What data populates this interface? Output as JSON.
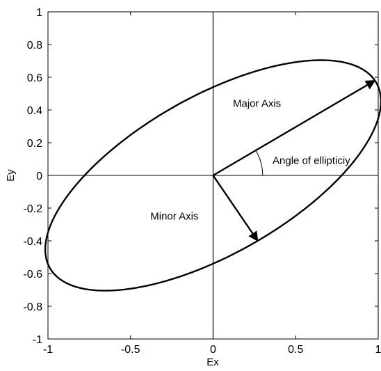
{
  "chart_data": {
    "type": "line",
    "title": "",
    "xlabel": "Ex",
    "ylabel": "Ey",
    "xlim": [
      -1,
      1
    ],
    "ylim": [
      -1,
      1
    ],
    "grid": false,
    "x_ticks": [
      -1,
      -0.5,
      0,
      0.5,
      1
    ],
    "x_tick_labels": [
      "-1",
      "-0.5",
      "0",
      "0.5",
      "1"
    ],
    "y_ticks": [
      -1,
      -0.8,
      -0.6,
      -0.4,
      -0.2,
      0,
      0.2,
      0.4,
      0.6,
      0.8,
      1
    ],
    "y_tick_labels": [
      "-1",
      "-0.8",
      "-0.6",
      "-0.4",
      "-0.2",
      "0",
      "0.2",
      "0.4",
      "0.6",
      "0.8",
      "1"
    ],
    "ellipse": {
      "center": [
        0,
        0
      ],
      "major_axis_end": [
        0.98,
        0.58
      ],
      "minor_axis_end": [
        0.27,
        -0.4
      ],
      "color": "#000000"
    },
    "reference_lines": [
      {
        "type": "horizontal",
        "y": 0
      },
      {
        "type": "vertical",
        "x": 0
      }
    ],
    "arrows": [
      {
        "name": "major-axis",
        "from": [
          0,
          0
        ],
        "to": [
          0.98,
          0.58
        ]
      },
      {
        "name": "minor-axis",
        "from": [
          0,
          0
        ],
        "to": [
          0.27,
          -0.4
        ]
      }
    ],
    "angle_arc": {
      "radius": 0.3
    },
    "annotations": [
      {
        "key": "major",
        "text": "Major Axis",
        "x": 0.12,
        "y": 0.42
      },
      {
        "key": "minor",
        "text": "Minor Axis",
        "x": -0.38,
        "y": -0.27
      },
      {
        "key": "angle",
        "text": "Angle of ellipticiy",
        "x": 0.36,
        "y": 0.07
      }
    ]
  }
}
